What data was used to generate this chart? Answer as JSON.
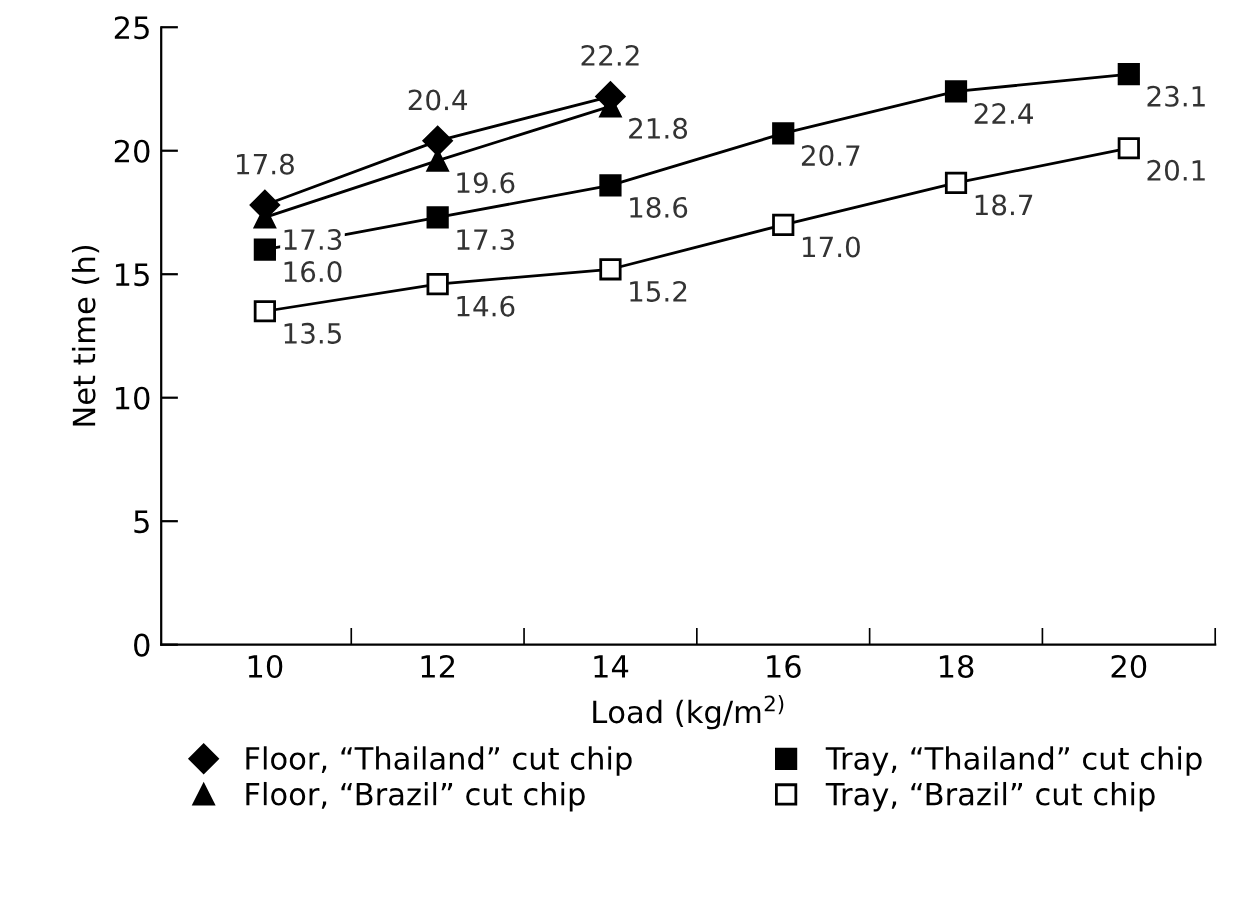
{
  "chart_data": {
    "type": "line",
    "xlabel": "Load (kg/m$^{2)}$",
    "ylabel": "Net time (h)",
    "categories": [
      "10",
      "12",
      "14",
      "16",
      "18",
      "20"
    ],
    "series": [
      {
        "name": "Floor, “Thailand” cut chip",
        "color": "#000000",
        "marker": "diamond",
        "values": [
          17.8,
          20.4,
          22.2,
          null,
          null,
          null
        ],
        "value_labels": [
          "17.8",
          "20.4",
          "22.2",
          null,
          null,
          null
        ]
      },
      {
        "name": "Floor, “Brazil” cut chip",
        "color": "#000000",
        "marker": "triangle",
        "values": [
          17.3,
          19.6,
          21.8,
          null,
          null,
          null
        ],
        "value_labels": [
          "17.3",
          "19.6",
          "21.8",
          null,
          null,
          null
        ]
      },
      {
        "name": "Tray, “Thailand” cut chip",
        "color": "#000000",
        "marker": "square",
        "values": [
          16.0,
          17.3,
          18.6,
          20.7,
          22.4,
          23.1
        ],
        "value_labels": [
          "16.0",
          "17.3",
          "18.6",
          "20.7",
          "22.4",
          "23.1"
        ]
      },
      {
        "name": "Tray, “Brazil” cut chip",
        "color": "#000000",
        "marker": "square",
        "colors": [
          "#ffffff",
          "#ffffff",
          "#ffffff",
          "#ffffff",
          "#ffffff",
          "#ffffff"
        ],
        "values": [
          13.5,
          14.6,
          15.2,
          17.0,
          18.7,
          20.1
        ],
        "value_labels": [
          "13.5",
          "14.6",
          "15.2",
          "17.0",
          "18.7",
          "20.1"
        ]
      }
    ],
    "ylim": [
      0,
      25
    ],
    "yticks": [
      0,
      5,
      10,
      15,
      20,
      25
    ],
    "grid": false,
    "legend": "bottom",
    "line_style": "solid"
  }
}
